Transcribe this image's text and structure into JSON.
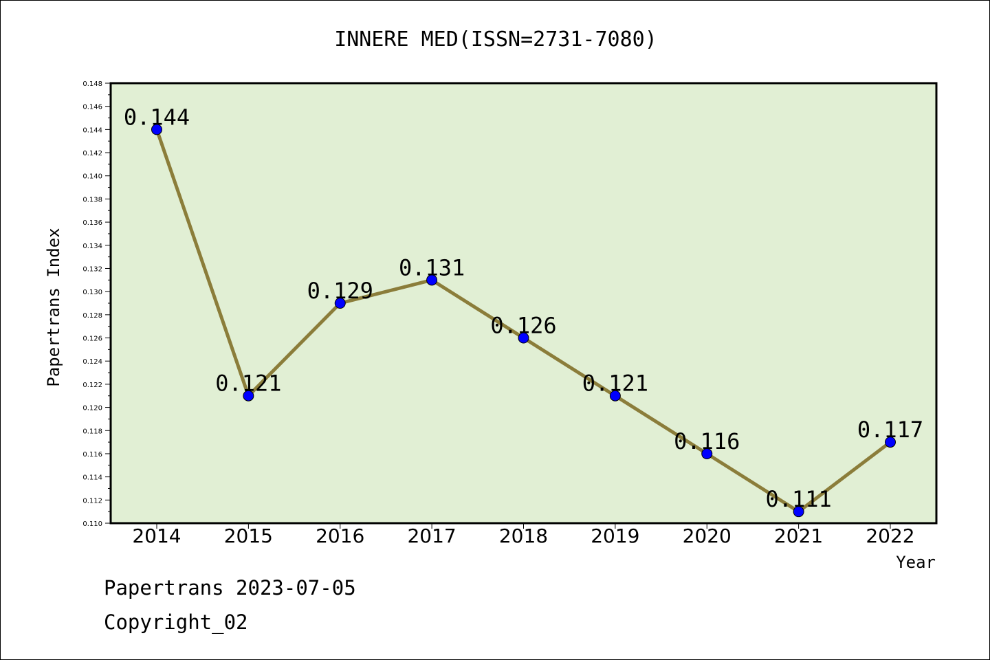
{
  "chart_data": {
    "type": "line",
    "title": "INNERE MED(ISSN=2731-7080)",
    "xlabel": "Year",
    "ylabel": "Papertrans Index",
    "x": [
      "2014",
      "2015",
      "2016",
      "2017",
      "2018",
      "2019",
      "2020",
      "2021",
      "2022"
    ],
    "values": [
      0.144,
      0.121,
      0.129,
      0.131,
      0.126,
      0.121,
      0.116,
      0.111,
      0.117
    ],
    "data_labels": [
      "0.144",
      "0.121",
      "0.129",
      "0.131",
      "0.126",
      "0.121",
      "0.116",
      "0.111",
      "0.117"
    ],
    "ylim": [
      0.11,
      0.148
    ],
    "yticks": [
      "0.110",
      "0.112",
      "0.114",
      "0.116",
      "0.118",
      "0.120",
      "0.122",
      "0.124",
      "0.126",
      "0.128",
      "0.130",
      "0.132",
      "0.134",
      "0.136",
      "0.138",
      "0.140",
      "0.142",
      "0.144",
      "0.146",
      "0.148"
    ],
    "grid": false,
    "colors": {
      "plot_background": "#e1efd4",
      "line": "#8b7d3a",
      "marker": "#0000ff",
      "marker_edge": "#000000"
    }
  },
  "footer": {
    "line1": "Papertrans 2023-07-05",
    "line2": "Copyright_02"
  }
}
